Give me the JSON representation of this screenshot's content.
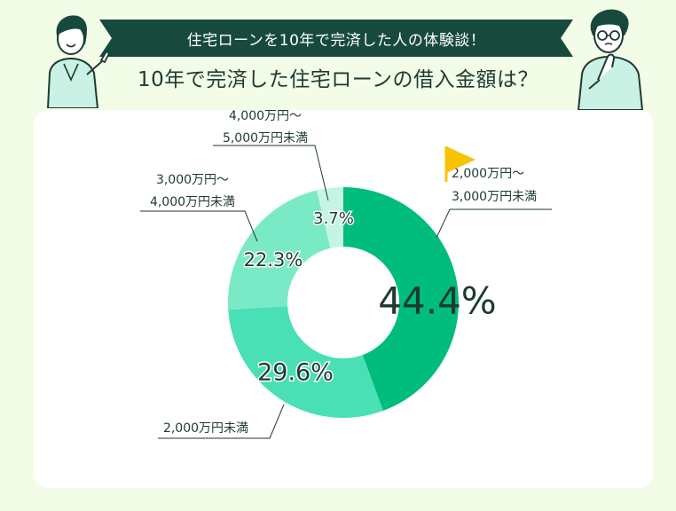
{
  "banner": {
    "text": "住宅ローンを10年で完済した人の体験談！"
  },
  "colors": {
    "background": "#f2fce6",
    "banner": "#174a3c",
    "card": "#ffffff",
    "slice_1": "#00bd7e",
    "slice_2": "#48e0b4",
    "slice_3": "#7aeac6",
    "slice_4": "#c4f5e3",
    "flag": "#f7c200"
  },
  "chart_data": {
    "type": "pie",
    "title": "10年で完済した住宅ローンの借入金額は？",
    "donut": true,
    "unit": "%",
    "slices": [
      {
        "label_lines": [
          "2,000万円〜",
          "3,000万円未満"
        ],
        "value": 44.4,
        "value_label": "44.4%",
        "color": "#00bd7e",
        "highlight": true
      },
      {
        "label_lines": [
          "2,000万円未満"
        ],
        "value": 29.6,
        "value_label": "29.6%",
        "color": "#48e0b4"
      },
      {
        "label_lines": [
          "3,000万円〜",
          "4,000万円未満"
        ],
        "value": 22.3,
        "value_label": "22.3%",
        "color": "#7aeac6"
      },
      {
        "label_lines": [
          "4,000万円〜",
          "5,000万円未満"
        ],
        "value": 3.7,
        "value_label": "3.7%",
        "color": "#c4f5e3"
      }
    ]
  }
}
